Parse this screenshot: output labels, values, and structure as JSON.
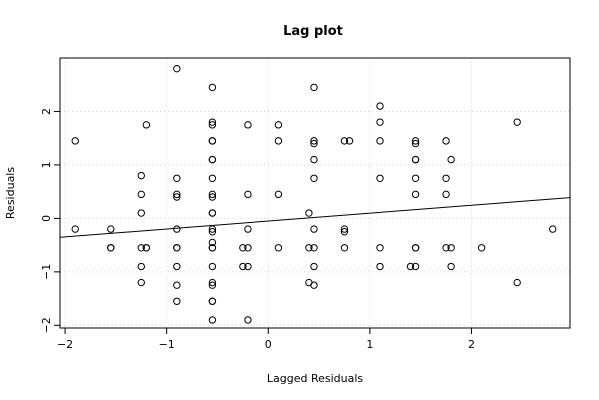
{
  "chart_data": {
    "type": "scatter",
    "title": "Lag plot",
    "xlabel": "Lagged Residuals",
    "ylabel": "Residuals",
    "xlim": [
      -2.05,
      2.97
    ],
    "ylim": [
      -2.05,
      3.0
    ],
    "xticks": [
      -2,
      -1,
      0,
      1,
      2
    ],
    "yticks": [
      -2,
      -1,
      0,
      1,
      2
    ],
    "xtick_labels": [
      "−2",
      "−1",
      "0",
      "1",
      "2"
    ],
    "ytick_labels": [
      "−2",
      "−1",
      "0",
      "1",
      "2"
    ],
    "grid": true,
    "regression_line": {
      "intercept": -0.05,
      "slope": 0.148
    },
    "points": [
      [
        -1.9,
        1.45
      ],
      [
        -1.9,
        -0.2
      ],
      [
        -1.55,
        -0.2
      ],
      [
        -1.55,
        -0.55
      ],
      [
        -1.55,
        -0.55
      ],
      [
        -1.25,
        0.8
      ],
      [
        -1.25,
        0.45
      ],
      [
        -1.25,
        0.1
      ],
      [
        -1.25,
        -0.55
      ],
      [
        -1.25,
        -0.9
      ],
      [
        -1.25,
        -1.2
      ],
      [
        -1.2,
        1.75
      ],
      [
        -1.2,
        -0.55
      ],
      [
        -1.2,
        -0.55
      ],
      [
        -0.9,
        2.8
      ],
      [
        -0.9,
        0.75
      ],
      [
        -0.9,
        0.45
      ],
      [
        -0.9,
        0.4
      ],
      [
        -0.9,
        -0.2
      ],
      [
        -0.9,
        -0.55
      ],
      [
        -0.9,
        -0.55
      ],
      [
        -0.9,
        -0.9
      ],
      [
        -0.9,
        -1.25
      ],
      [
        -0.9,
        -1.55
      ],
      [
        -0.55,
        2.45
      ],
      [
        -0.55,
        1.8
      ],
      [
        -0.55,
        1.75
      ],
      [
        -0.55,
        1.45
      ],
      [
        -0.55,
        1.45
      ],
      [
        -0.55,
        1.1
      ],
      [
        -0.55,
        1.1
      ],
      [
        -0.55,
        0.75
      ],
      [
        -0.55,
        0.45
      ],
      [
        -0.55,
        0.4
      ],
      [
        -0.55,
        0.1
      ],
      [
        -0.55,
        0.1
      ],
      [
        -0.55,
        -0.2
      ],
      [
        -0.55,
        -0.25
      ],
      [
        -0.55,
        -0.45
      ],
      [
        -0.55,
        -0.55
      ],
      [
        -0.55,
        -0.55
      ],
      [
        -0.55,
        -0.9
      ],
      [
        -0.55,
        -1.2
      ],
      [
        -0.55,
        -1.25
      ],
      [
        -0.55,
        -1.55
      ],
      [
        -0.55,
        -1.55
      ],
      [
        -0.55,
        -1.9
      ],
      [
        -0.25,
        -0.55
      ],
      [
        -0.25,
        -0.9
      ],
      [
        -0.2,
        1.75
      ],
      [
        -0.2,
        0.45
      ],
      [
        -0.2,
        -0.2
      ],
      [
        -0.2,
        -0.55
      ],
      [
        -0.2,
        -0.9
      ],
      [
        -0.2,
        -1.9
      ],
      [
        0.1,
        1.75
      ],
      [
        0.1,
        1.45
      ],
      [
        0.1,
        0.45
      ],
      [
        0.1,
        -0.55
      ],
      [
        0.4,
        0.1
      ],
      [
        0.4,
        -0.55
      ],
      [
        0.4,
        -1.2
      ],
      [
        0.45,
        2.45
      ],
      [
        0.45,
        1.45
      ],
      [
        0.45,
        1.4
      ],
      [
        0.45,
        1.1
      ],
      [
        0.45,
        0.75
      ],
      [
        0.45,
        -0.2
      ],
      [
        0.45,
        -0.55
      ],
      [
        0.45,
        -0.9
      ],
      [
        0.45,
        -1.25
      ],
      [
        0.75,
        1.45
      ],
      [
        0.75,
        -0.2
      ],
      [
        0.75,
        -0.25
      ],
      [
        0.75,
        -0.55
      ],
      [
        0.8,
        1.45
      ],
      [
        1.1,
        2.1
      ],
      [
        1.1,
        1.8
      ],
      [
        1.1,
        1.45
      ],
      [
        1.1,
        0.75
      ],
      [
        1.1,
        -0.55
      ],
      [
        1.1,
        -0.9
      ],
      [
        1.4,
        -0.9
      ],
      [
        1.45,
        1.45
      ],
      [
        1.45,
        1.4
      ],
      [
        1.45,
        1.1
      ],
      [
        1.45,
        1.1
      ],
      [
        1.45,
        0.75
      ],
      [
        1.45,
        0.45
      ],
      [
        1.45,
        -0.55
      ],
      [
        1.45,
        -0.55
      ],
      [
        1.45,
        -0.9
      ],
      [
        1.75,
        1.45
      ],
      [
        1.75,
        0.75
      ],
      [
        1.75,
        0.45
      ],
      [
        1.75,
        -0.55
      ],
      [
        1.8,
        1.1
      ],
      [
        1.8,
        -0.55
      ],
      [
        1.8,
        -0.9
      ],
      [
        2.1,
        -0.55
      ],
      [
        2.45,
        1.8
      ],
      [
        2.45,
        -1.2
      ],
      [
        2.8,
        -0.2
      ]
    ]
  }
}
